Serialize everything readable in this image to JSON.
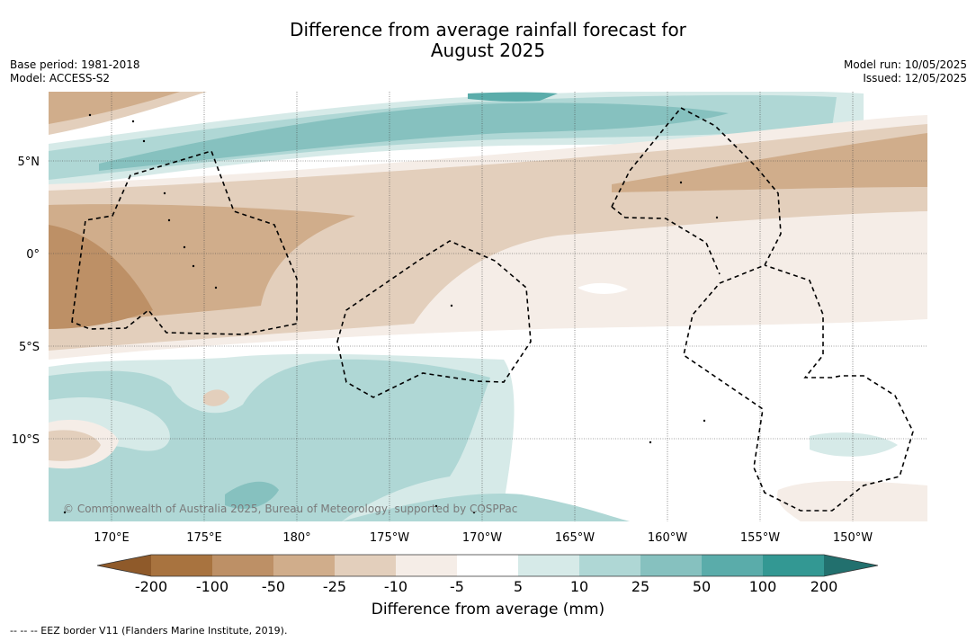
{
  "header": {
    "title_line1": "Difference from average rainfall forecast for",
    "title_line2": "August 2025",
    "base_period": "Base period: 1981-2018",
    "model": "Model: ACCESS-S2",
    "model_run": "Model run: 10/05/2025",
    "issued": "Issued: 12/05/2025"
  },
  "map": {
    "copyright": "© Commonwealth of Australia 2025, Bureau of Meteorology, supported by COSPPac",
    "lon_labels": [
      "170°E",
      "175°E",
      "180°",
      "175°W",
      "170°W",
      "165°W",
      "160°W",
      "155°W",
      "150°W"
    ],
    "lat_labels": [
      "5°N",
      "0°",
      "5°S",
      "10°S"
    ]
  },
  "colorbar": {
    "title": "Difference from average (mm)",
    "tick_labels": [
      "-200",
      "-100",
      "-50",
      "-25",
      "-10",
      "-5",
      "5",
      "10",
      "25",
      "50",
      "100",
      "200"
    ],
    "colors": {
      "extend_low": "#8f5a2a",
      "b1": "#a8733f",
      "b2": "#bd9066",
      "b3": "#d0ad8b",
      "b4": "#e3cfbc",
      "b5": "#f5ede7",
      "b6": "#ffffff",
      "b7": "#d6eae8",
      "b8": "#afd7d5",
      "b9": "#86c1bf",
      "b10": "#5aacaa",
      "b11": "#339893",
      "extend_high": "#22706e"
    }
  },
  "footer": {
    "legend": "--  --  -- EEZ border V11 (Flanders Marine Institute, 2019)."
  }
}
